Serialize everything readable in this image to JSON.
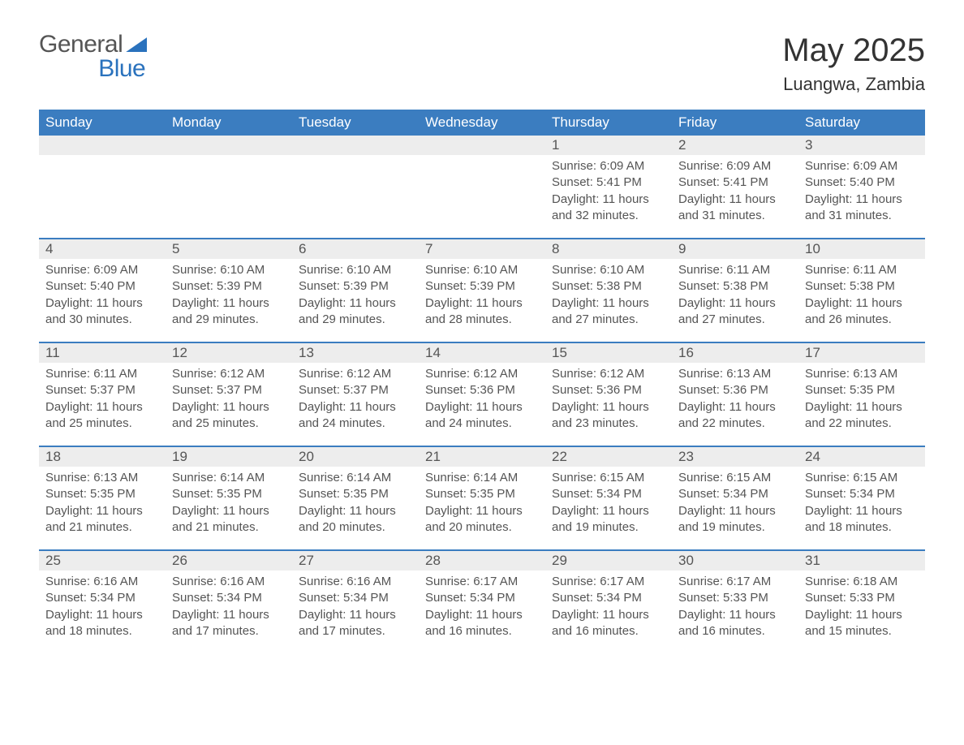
{
  "logo": {
    "text1": "General",
    "text2": "Blue"
  },
  "title": "May 2025",
  "location": "Luangwa, Zambia",
  "colors": {
    "header_bg": "#3b7dc0",
    "header_text": "#ffffff",
    "daynum_bg": "#ededed",
    "border": "#3b7dc0",
    "text": "#555555",
    "logo_blue": "#2a72bd"
  },
  "fonts": {
    "title_size": 40,
    "location_size": 22,
    "header_size": 17,
    "body_size": 15
  },
  "day_headers": [
    "Sunday",
    "Monday",
    "Tuesday",
    "Wednesday",
    "Thursday",
    "Friday",
    "Saturday"
  ],
  "weeks": [
    [
      null,
      null,
      null,
      null,
      {
        "n": "1",
        "sr": "6:09 AM",
        "ss": "5:41 PM",
        "dl": "11 hours and 32 minutes."
      },
      {
        "n": "2",
        "sr": "6:09 AM",
        "ss": "5:41 PM",
        "dl": "11 hours and 31 minutes."
      },
      {
        "n": "3",
        "sr": "6:09 AM",
        "ss": "5:40 PM",
        "dl": "11 hours and 31 minutes."
      }
    ],
    [
      {
        "n": "4",
        "sr": "6:09 AM",
        "ss": "5:40 PM",
        "dl": "11 hours and 30 minutes."
      },
      {
        "n": "5",
        "sr": "6:10 AM",
        "ss": "5:39 PM",
        "dl": "11 hours and 29 minutes."
      },
      {
        "n": "6",
        "sr": "6:10 AM",
        "ss": "5:39 PM",
        "dl": "11 hours and 29 minutes."
      },
      {
        "n": "7",
        "sr": "6:10 AM",
        "ss": "5:39 PM",
        "dl": "11 hours and 28 minutes."
      },
      {
        "n": "8",
        "sr": "6:10 AM",
        "ss": "5:38 PM",
        "dl": "11 hours and 27 minutes."
      },
      {
        "n": "9",
        "sr": "6:11 AM",
        "ss": "5:38 PM",
        "dl": "11 hours and 27 minutes."
      },
      {
        "n": "10",
        "sr": "6:11 AM",
        "ss": "5:38 PM",
        "dl": "11 hours and 26 minutes."
      }
    ],
    [
      {
        "n": "11",
        "sr": "6:11 AM",
        "ss": "5:37 PM",
        "dl": "11 hours and 25 minutes."
      },
      {
        "n": "12",
        "sr": "6:12 AM",
        "ss": "5:37 PM",
        "dl": "11 hours and 25 minutes."
      },
      {
        "n": "13",
        "sr": "6:12 AM",
        "ss": "5:37 PM",
        "dl": "11 hours and 24 minutes."
      },
      {
        "n": "14",
        "sr": "6:12 AM",
        "ss": "5:36 PM",
        "dl": "11 hours and 24 minutes."
      },
      {
        "n": "15",
        "sr": "6:12 AM",
        "ss": "5:36 PM",
        "dl": "11 hours and 23 minutes."
      },
      {
        "n": "16",
        "sr": "6:13 AM",
        "ss": "5:36 PM",
        "dl": "11 hours and 22 minutes."
      },
      {
        "n": "17",
        "sr": "6:13 AM",
        "ss": "5:35 PM",
        "dl": "11 hours and 22 minutes."
      }
    ],
    [
      {
        "n": "18",
        "sr": "6:13 AM",
        "ss": "5:35 PM",
        "dl": "11 hours and 21 minutes."
      },
      {
        "n": "19",
        "sr": "6:14 AM",
        "ss": "5:35 PM",
        "dl": "11 hours and 21 minutes."
      },
      {
        "n": "20",
        "sr": "6:14 AM",
        "ss": "5:35 PM",
        "dl": "11 hours and 20 minutes."
      },
      {
        "n": "21",
        "sr": "6:14 AM",
        "ss": "5:35 PM",
        "dl": "11 hours and 20 minutes."
      },
      {
        "n": "22",
        "sr": "6:15 AM",
        "ss": "5:34 PM",
        "dl": "11 hours and 19 minutes."
      },
      {
        "n": "23",
        "sr": "6:15 AM",
        "ss": "5:34 PM",
        "dl": "11 hours and 19 minutes."
      },
      {
        "n": "24",
        "sr": "6:15 AM",
        "ss": "5:34 PM",
        "dl": "11 hours and 18 minutes."
      }
    ],
    [
      {
        "n": "25",
        "sr": "6:16 AM",
        "ss": "5:34 PM",
        "dl": "11 hours and 18 minutes."
      },
      {
        "n": "26",
        "sr": "6:16 AM",
        "ss": "5:34 PM",
        "dl": "11 hours and 17 minutes."
      },
      {
        "n": "27",
        "sr": "6:16 AM",
        "ss": "5:34 PM",
        "dl": "11 hours and 17 minutes."
      },
      {
        "n": "28",
        "sr": "6:17 AM",
        "ss": "5:34 PM",
        "dl": "11 hours and 16 minutes."
      },
      {
        "n": "29",
        "sr": "6:17 AM",
        "ss": "5:34 PM",
        "dl": "11 hours and 16 minutes."
      },
      {
        "n": "30",
        "sr": "6:17 AM",
        "ss": "5:33 PM",
        "dl": "11 hours and 16 minutes."
      },
      {
        "n": "31",
        "sr": "6:18 AM",
        "ss": "5:33 PM",
        "dl": "11 hours and 15 minutes."
      }
    ]
  ],
  "labels": {
    "sunrise": "Sunrise:",
    "sunset": "Sunset:",
    "daylight": "Daylight:"
  }
}
